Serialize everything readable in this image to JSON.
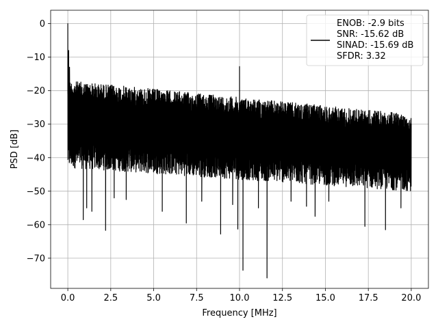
{
  "chart_data": {
    "type": "line",
    "title": "",
    "xlabel": "Frequency [MHz]",
    "ylabel": "PSD [dB]",
    "xlim": [
      -1.0,
      21.0
    ],
    "ylim": [
      -79.0,
      4.0
    ],
    "xticks": [
      0.0,
      2.5,
      5.0,
      7.5,
      10.0,
      12.5,
      15.0,
      17.5,
      20.0
    ],
    "xtick_labels": [
      "0.0",
      "2.5",
      "5.0",
      "7.5",
      "10.0",
      "12.5",
      "15.0",
      "17.5",
      "20.0"
    ],
    "yticks": [
      0,
      -10,
      -20,
      -30,
      -40,
      -50,
      -60,
      -70
    ],
    "ytick_labels": [
      "0",
      "−10",
      "−20",
      "−30",
      "−40",
      "−50",
      "−60",
      "−70"
    ],
    "grid": true,
    "legend_position": "top-right",
    "series": [
      {
        "name": "ENOB: -2.9 bits\nSNR: -15.62 dB\nSINAD: -15.69 dB\nSFDR: 3.32",
        "color": "#000000",
        "noise_floor": {
          "x_range": [
            0.0,
            20.0
          ],
          "upper_envelope_db": [
            -17.0,
            -27.0
          ],
          "lower_envelope_db": [
            -43.0,
            -50.0
          ]
        },
        "peaks": [
          {
            "x": 0.0,
            "y": 0.0
          },
          {
            "x": 0.05,
            "y": -8.0
          },
          {
            "x": 0.1,
            "y": -13.0
          },
          {
            "x": 10.0,
            "y": -12.8
          }
        ],
        "dips": [
          {
            "x": 0.9,
            "y": -58.5
          },
          {
            "x": 1.1,
            "y": -55.0
          },
          {
            "x": 1.4,
            "y": -56.0
          },
          {
            "x": 2.2,
            "y": -61.7
          },
          {
            "x": 2.7,
            "y": -52.0
          },
          {
            "x": 3.4,
            "y": -52.5
          },
          {
            "x": 5.5,
            "y": -56.0
          },
          {
            "x": 6.9,
            "y": -59.5
          },
          {
            "x": 7.8,
            "y": -53.0
          },
          {
            "x": 8.9,
            "y": -62.8
          },
          {
            "x": 9.6,
            "y": -54.0
          },
          {
            "x": 9.9,
            "y": -61.3
          },
          {
            "x": 10.2,
            "y": -73.6
          },
          {
            "x": 11.1,
            "y": -55.0
          },
          {
            "x": 11.6,
            "y": -75.9
          },
          {
            "x": 13.0,
            "y": -53.0
          },
          {
            "x": 13.9,
            "y": -54.5
          },
          {
            "x": 14.4,
            "y": -57.5
          },
          {
            "x": 15.2,
            "y": -53.0
          },
          {
            "x": 17.3,
            "y": -60.5
          },
          {
            "x": 18.5,
            "y": -61.5
          },
          {
            "x": 19.4,
            "y": -55.0
          }
        ]
      }
    ]
  }
}
